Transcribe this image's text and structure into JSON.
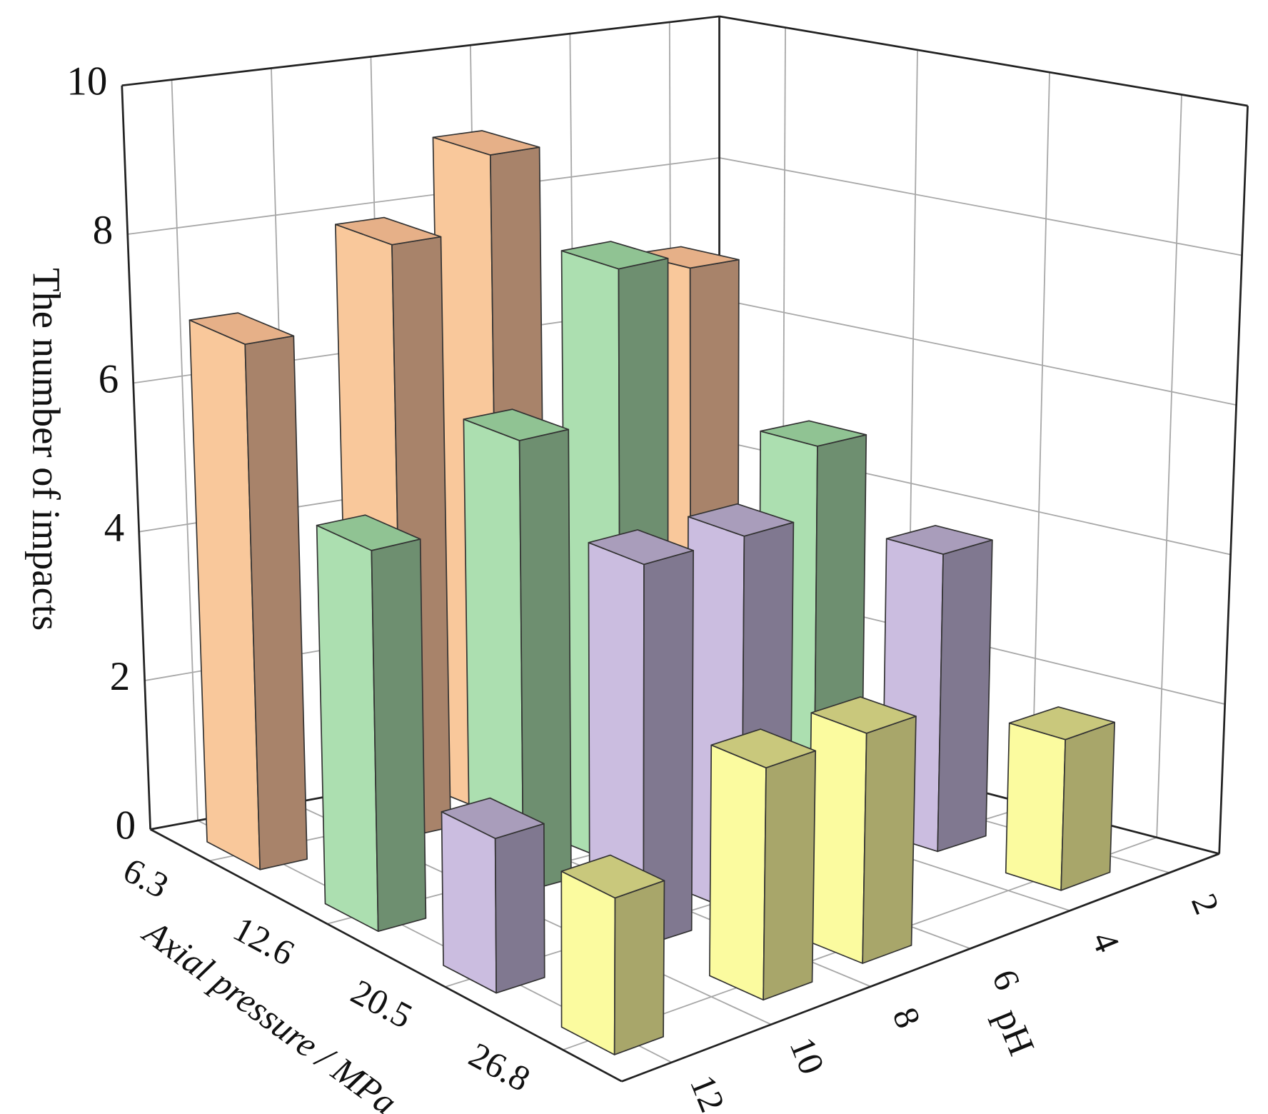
{
  "chart_data": {
    "type": "bar3d",
    "zlabel": "The number of impacts",
    "xlabel": "Axial pressure / MPa",
    "ylabel": "pH",
    "categories": [
      "6.3",
      "12.6",
      "20.5",
      "26.8"
    ],
    "ylim": [
      13,
      1
    ],
    "yticks": [
      12,
      10,
      8,
      6,
      4,
      2
    ],
    "zlim": [
      0,
      10
    ],
    "zticks": [
      0,
      2,
      4,
      6,
      8,
      10
    ],
    "grid": true,
    "series": [
      {
        "color": {
          "side": "#f9c89b",
          "shade": "#a8836a",
          "top": "#e6b088"
        },
        "y": [
          12,
          9,
          7,
          3
        ],
        "values": [
          7,
          8,
          9,
          7
        ]
      },
      {
        "color": {
          "side": "#acdfb0",
          "shade": "#6e8f70",
          "top": "#90c393"
        },
        "y": [
          12,
          9,
          7,
          3
        ],
        "values": [
          5,
          6,
          8,
          5
        ]
      },
      {
        "color": {
          "side": "#cbbde0",
          "shade": "#807890",
          "top": "#a99dbb"
        },
        "y": [
          12,
          9,
          7,
          3
        ],
        "values": [
          2,
          5,
          5,
          4
        ]
      },
      {
        "color": {
          "side": "#fbfb9f",
          "shade": "#a8a66a",
          "top": "#c9c87c"
        },
        "y": [
          12,
          9,
          7,
          3
        ],
        "values": [
          2,
          3,
          3,
          2
        ]
      }
    ]
  }
}
